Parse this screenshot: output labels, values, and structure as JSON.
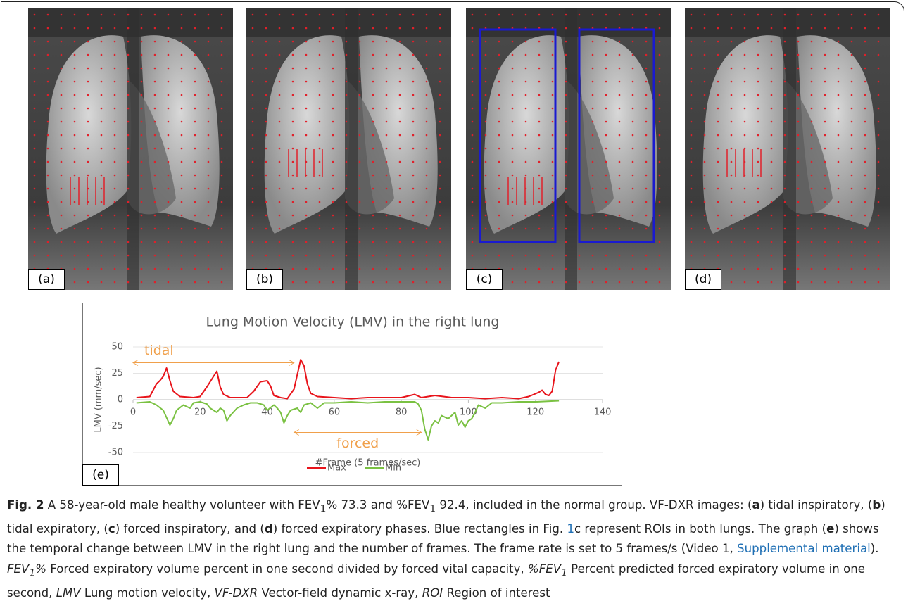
{
  "panels": [
    {
      "label": "(a)"
    },
    {
      "label": "(b)"
    },
    {
      "label": "(c)"
    },
    {
      "label": "(d)"
    }
  ],
  "chart_data": {
    "type": "line",
    "title": "Lung Motion Velocity (LMV) in the right lung",
    "xlabel": "#Frame (5 frames/sec)",
    "ylabel": "LMV (mm/sec)",
    "panel_label": "(e)",
    "xlim": [
      0,
      140
    ],
    "xticks": [
      0,
      20,
      40,
      60,
      80,
      100,
      120,
      140
    ],
    "ylim": [
      -50,
      50
    ],
    "yticks": [
      -50,
      -25,
      0,
      25,
      50
    ],
    "grid": true,
    "legend": "bottom",
    "series": [
      {
        "name": "Max",
        "color": "#e8141b",
        "x": [
          1,
          5,
          7,
          8,
          9,
          10,
          11,
          12,
          14,
          18,
          20,
          22,
          24,
          25,
          26,
          27,
          29,
          34,
          36,
          38,
          40,
          41,
          42,
          44,
          46,
          48,
          50,
          51,
          52,
          53,
          55,
          60,
          65,
          70,
          75,
          80,
          84,
          86,
          90,
          95,
          100,
          105,
          110,
          115,
          118,
          121,
          122,
          123,
          124,
          125,
          126,
          127
        ],
        "values": [
          2,
          3,
          15,
          18,
          22,
          30,
          18,
          8,
          3,
          2,
          3,
          12,
          22,
          27,
          12,
          5,
          2,
          2,
          8,
          17,
          18,
          13,
          4,
          2,
          1,
          10,
          38,
          32,
          15,
          6,
          3,
          2,
          1,
          2,
          2,
          2,
          5,
          2,
          4,
          2,
          2,
          1,
          2,
          1,
          3,
          7,
          9,
          5,
          4,
          8,
          28,
          36
        ]
      },
      {
        "name": "Min",
        "color": "#7ac142",
        "x": [
          1,
          5,
          7,
          9,
          11,
          12,
          13,
          15,
          17,
          18,
          20,
          22,
          23,
          25,
          26,
          27,
          28,
          29,
          31,
          33,
          35,
          37,
          39,
          40,
          42,
          43,
          44,
          45,
          46,
          47,
          49,
          50,
          51,
          53,
          55,
          57,
          60,
          65,
          70,
          75,
          80,
          84,
          85,
          86,
          87,
          88,
          89,
          90,
          91,
          92,
          94,
          96,
          97,
          98,
          99,
          100,
          101,
          102,
          103,
          105,
          107,
          110,
          115,
          120,
          127
        ],
        "values": [
          -3,
          -2,
          -5,
          -10,
          -24,
          -18,
          -10,
          -5,
          -8,
          -3,
          -2,
          -4,
          -8,
          -12,
          -8,
          -10,
          -20,
          -15,
          -8,
          -5,
          -3,
          -3,
          -5,
          -10,
          -5,
          -8,
          -12,
          -22,
          -15,
          -10,
          -8,
          -12,
          -5,
          -3,
          -8,
          -3,
          -3,
          -2,
          -3,
          -2,
          -2,
          -2,
          -4,
          -10,
          -28,
          -38,
          -25,
          -20,
          -22,
          -15,
          -18,
          -12,
          -24,
          -20,
          -26,
          -20,
          -18,
          -12,
          -5,
          -8,
          -3,
          -3,
          -2,
          -2,
          -1
        ]
      }
    ],
    "annotations": [
      {
        "text": "tidal",
        "x": [
          0,
          48
        ],
        "y": 35,
        "color": "#f0a04b"
      },
      {
        "text": "forced",
        "x": [
          48,
          86
        ],
        "y": -31,
        "color": "#f0a04b"
      }
    ]
  },
  "caption": {
    "segments": [
      {
        "text": "Fig. 2",
        "style": "b"
      },
      {
        "text": " A 58-year-old male healthy volunteer with FEV",
        "style": "n"
      },
      {
        "text": "1",
        "style": "sub"
      },
      {
        "text": "% 73.3 and %FEV",
        "style": "n"
      },
      {
        "text": "1",
        "style": "sub"
      },
      {
        "text": " 92.4, included in the normal group. VF-DXR images: (",
        "style": "n"
      },
      {
        "text": "a",
        "style": "b"
      },
      {
        "text": ") tidal inspiratory, (",
        "style": "n"
      },
      {
        "text": "b",
        "style": "b"
      },
      {
        "text": ") tidal expiratory, (",
        "style": "n"
      },
      {
        "text": "c",
        "style": "b"
      },
      {
        "text": ") forced inspiratory, and (",
        "style": "n"
      },
      {
        "text": "d",
        "style": "b"
      },
      {
        "text": ") forced expiratory phases. Blue rectangles in Fig. ",
        "style": "n"
      },
      {
        "text": "1",
        "style": "link"
      },
      {
        "text": "c represent ROIs in both lungs. The graph (",
        "style": "n"
      },
      {
        "text": "e",
        "style": "b"
      },
      {
        "text": ") shows the temporal change between LMV in the right lung and the number of frames. The frame rate is set to 5 frames/s (Video 1, ",
        "style": "n"
      },
      {
        "text": "Supplemental material",
        "style": "link"
      },
      {
        "text": "). ",
        "style": "n"
      },
      {
        "text": "FEV",
        "style": "i"
      },
      {
        "text": "1",
        "style": "isub"
      },
      {
        "text": "%",
        "style": "i"
      },
      {
        "text": " Forced expiratory volume percent in one second divided by forced vital capacity, ",
        "style": "n"
      },
      {
        "text": "%FEV",
        "style": "i"
      },
      {
        "text": "1",
        "style": "isub"
      },
      {
        "text": " Percent predicted forced expiratory volume in one second, ",
        "style": "n"
      },
      {
        "text": "LMV",
        "style": "i"
      },
      {
        "text": " Lung motion velocity, ",
        "style": "n"
      },
      {
        "text": "VF-DXR",
        "style": "i"
      },
      {
        "text": " Vector-field dynamic x-ray, ",
        "style": "n"
      },
      {
        "text": "ROI",
        "style": "i"
      },
      {
        "text": " Region of interest",
        "style": "n"
      }
    ]
  }
}
